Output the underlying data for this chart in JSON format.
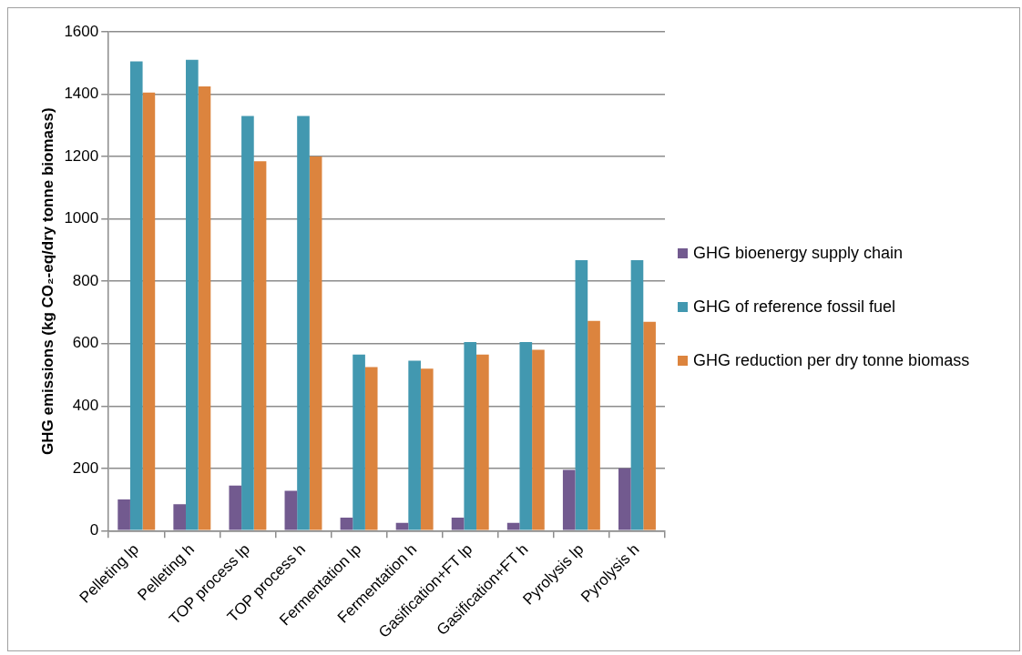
{
  "chart_data": {
    "type": "bar",
    "ylabel": "GHG emissions (kg CO₂-eq/dry tonne biomass)",
    "categories": [
      "Pelleting lp",
      "Pelleting h",
      "TOP process lp",
      "TOP process h",
      "Fermentation lp",
      "Fermentation h",
      "Gasification+FT lp",
      "Gasification+FT h",
      "Pyrolysis lp",
      "Pyrolysis h"
    ],
    "series": [
      {
        "name": "GHG bioenergy supply chain",
        "color": "#725a8f",
        "values": [
          100,
          85,
          145,
          128,
          42,
          25,
          42,
          25,
          195,
          200
        ]
      },
      {
        "name": "GHG of reference fossil fuel",
        "color": "#4298b0",
        "values": [
          1505,
          1510,
          1330,
          1330,
          565,
          545,
          605,
          605,
          868,
          868
        ]
      },
      {
        "name": "GHG reduction per dry tonne biomass",
        "color": "#dc843e",
        "values": [
          1405,
          1425,
          1185,
          1200,
          525,
          520,
          565,
          580,
          673,
          670
        ]
      }
    ],
    "ylim": [
      0,
      1600
    ],
    "yticks": [
      0,
      200,
      400,
      600,
      800,
      1000,
      1200,
      1400,
      1600
    ],
    "grid": "y",
    "legend": "right"
  }
}
